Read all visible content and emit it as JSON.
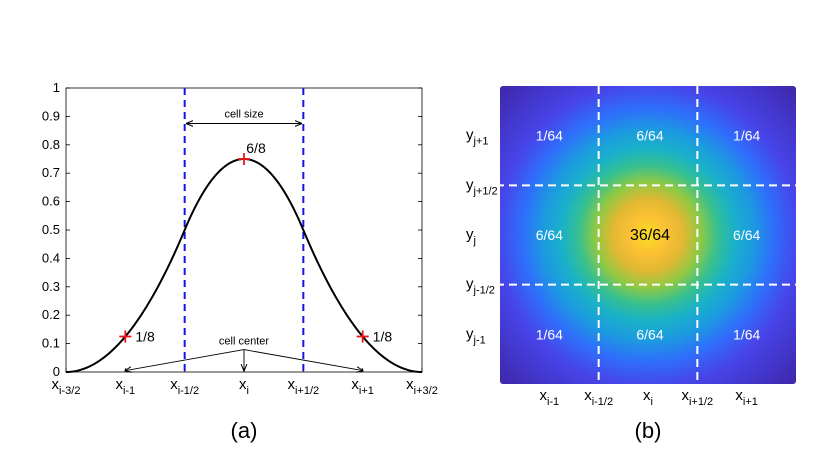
{
  "chart_data": [
    {
      "type": "line",
      "title": "",
      "caption": "(a)",
      "xlabel": "",
      "ylabel": "",
      "x": [
        -1.5,
        -1.25,
        -1.0,
        -0.75,
        -0.5,
        -0.25,
        0,
        0.25,
        0.5,
        0.75,
        1.0,
        1.25,
        1.5
      ],
      "y": [
        0.0,
        0.031,
        0.125,
        0.281,
        0.5,
        0.6875,
        0.75,
        0.6875,
        0.5,
        0.281,
        0.125,
        0.031,
        0.0
      ],
      "xlim": [
        -1.5,
        1.5
      ],
      "ylim": [
        0,
        1
      ],
      "yticks": [
        "0",
        "0.1",
        "0.2",
        "0.3",
        "0.4",
        "0.5",
        "0.6",
        "0.7",
        "0.8",
        "0.9",
        "1"
      ],
      "xticks": [
        {
          "value": -1.5,
          "base": "x",
          "sub": "i-3/2"
        },
        {
          "value": -1.0,
          "base": "x",
          "sub": "i-1"
        },
        {
          "value": -0.5,
          "base": "x",
          "sub": "i-1/2"
        },
        {
          "value": 0.0,
          "base": "x",
          "sub": "i"
        },
        {
          "value": 0.5,
          "base": "x",
          "sub": "i+1/2"
        },
        {
          "value": 1.0,
          "base": "x",
          "sub": "i+1"
        },
        {
          "value": 1.5,
          "base": "x",
          "sub": "i+3/2"
        }
      ],
      "markers": [
        {
          "x": -1.0,
          "y": 0.125,
          "label": "1/8"
        },
        {
          "x": 0.0,
          "y": 0.75,
          "label": "6/8"
        },
        {
          "x": 1.0,
          "y": 0.125,
          "label": "1/8"
        }
      ],
      "cell_boundaries": [
        -0.5,
        0.5
      ],
      "annotations": {
        "cell_size": "cell size",
        "cell_center": "cell center",
        "cell_size_y": 0.875,
        "cell_center_y": 0.1,
        "cell_center_arrow_y": 0.005,
        "cell_center_arrow_targets": [
          -1.0,
          0.0,
          1.0
        ]
      },
      "colors": {
        "curve": "#000000",
        "marker": "#e8141c",
        "boundary": "#1414e6"
      }
    },
    {
      "type": "heatmap",
      "title": "",
      "caption": "(b)",
      "xlim": [
        -1.5,
        1.5
      ],
      "ylim": [
        -1.5,
        1.5
      ],
      "xticks": [
        {
          "value": -1.0,
          "base": "x",
          "sub": "i-1"
        },
        {
          "value": -0.5,
          "base": "x",
          "sub": "i-1/2"
        },
        {
          "value": 0.0,
          "base": "x",
          "sub": "i"
        },
        {
          "value": 0.5,
          "base": "x",
          "sub": "i+1/2"
        },
        {
          "value": 1.0,
          "base": "x",
          "sub": "i+1"
        }
      ],
      "yticks": [
        {
          "value": 1.0,
          "base": "y",
          "sub": "j+1"
        },
        {
          "value": 0.5,
          "base": "y",
          "sub": "j+1/2"
        },
        {
          "value": 0.0,
          "base": "y",
          "sub": "j"
        },
        {
          "value": -0.5,
          "base": "y",
          "sub": "j-1/2"
        },
        {
          "value": -1.0,
          "base": "y",
          "sub": "j-1"
        }
      ],
      "cell_values": [
        [
          "1/64",
          "6/64",
          "1/64"
        ],
        [
          "6/64",
          "36/64",
          "6/64"
        ],
        [
          "1/64",
          "6/64",
          "1/64"
        ]
      ],
      "cell_boundaries": [
        -0.5,
        0.5
      ],
      "colormap": [
        "#3e26a8",
        "#4744e8",
        "#2f6efb",
        "#1c9ae0",
        "#1ab1c8",
        "#37c08f",
        "#8fc944",
        "#e1b833",
        "#fcc035",
        "#f7e01f"
      ],
      "colors": {
        "grid": "#ffffff"
      }
    }
  ]
}
